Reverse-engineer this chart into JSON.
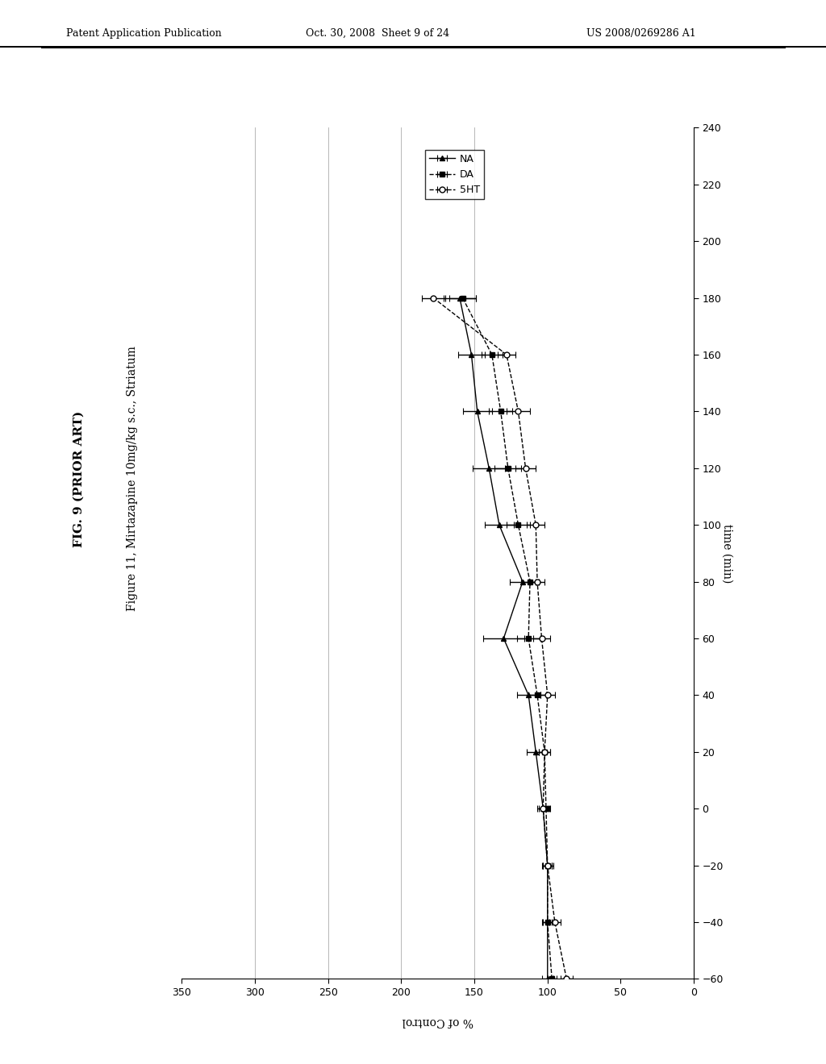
{
  "title_fig": "FIG. 9 (PRIOR ART)",
  "title_sub": "Figure 11, Mirtazapine 10mg/kg s.c., Striatum",
  "xlabel_rotated": "time (min)",
  "ylabel_rotated": "% of Control",
  "time_ticks": [
    -60,
    -40,
    -20,
    0,
    20,
    40,
    60,
    80,
    100,
    120,
    140,
    160,
    180,
    200,
    220,
    240
  ],
  "pct_ticks": [
    0,
    50,
    100,
    150,
    200,
    250,
    300,
    350
  ],
  "NA_time": [
    -60,
    -40,
    -20,
    0,
    20,
    40,
    60,
    80,
    100,
    120,
    140,
    160,
    180
  ],
  "NA_pct": [
    100,
    100,
    100,
    103,
    108,
    113,
    130,
    117,
    133,
    140,
    148,
    152,
    160
  ],
  "NA_err": [
    4,
    4,
    4,
    4,
    6,
    8,
    14,
    9,
    10,
    11,
    10,
    9,
    11
  ],
  "DA_time": [
    -60,
    -40,
    -20,
    0,
    20,
    40,
    60,
    80,
    100,
    120,
    140,
    160,
    180
  ],
  "DA_pct": [
    97,
    100,
    100,
    101,
    102,
    107,
    113,
    112,
    120,
    127,
    132,
    138,
    158
  ],
  "DA_err": [
    3,
    3,
    3,
    3,
    4,
    6,
    8,
    6,
    8,
    9,
    8,
    7,
    9
  ],
  "HT5_time": [
    -60,
    -40,
    -20,
    0,
    20,
    40,
    60,
    80,
    100,
    120,
    140,
    160,
    180
  ],
  "HT5_pct": [
    87,
    95,
    100,
    103,
    102,
    100,
    104,
    107,
    108,
    115,
    120,
    128,
    178
  ],
  "HT5_err": [
    4,
    4,
    3,
    3,
    4,
    5,
    6,
    5,
    6,
    7,
    8,
    6,
    8
  ],
  "background_color": "#ffffff",
  "header_text": "Patent Application Publication",
  "header_date": "Oct. 30, 2008  Sheet 9 of 24",
  "header_patent": "US 2008/0269286 A1",
  "time_xlim": [
    -60,
    240
  ],
  "pct_ylim": [
    0,
    350
  ],
  "vlines_pct": [
    150,
    200,
    250,
    300
  ]
}
